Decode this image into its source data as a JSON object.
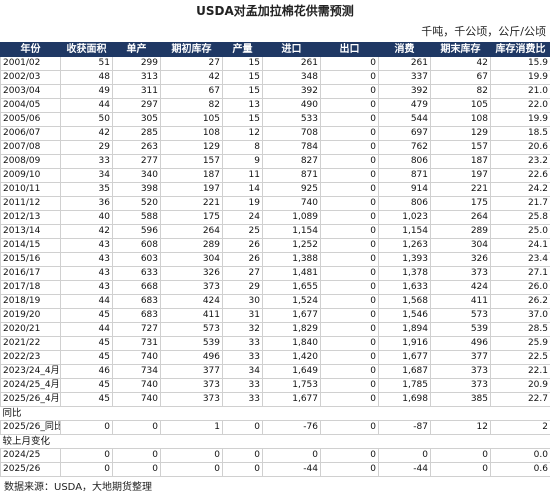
{
  "title": "USDA对孟加拉棉花供需预测",
  "unit": "千吨，千公顷，公斤/公顷",
  "table": {
    "header": [
      "年份",
      "收获面积",
      "单产",
      "期初库存",
      "产量",
      "进口",
      "出口",
      "消费",
      "期末库存",
      "库存消费比"
    ],
    "rows": [
      [
        "2001/02",
        "51",
        "299",
        "27",
        "15",
        "261",
        "0",
        "261",
        "42",
        "15.9"
      ],
      [
        "2002/03",
        "48",
        "313",
        "42",
        "15",
        "348",
        "0",
        "337",
        "67",
        "19.9"
      ],
      [
        "2003/04",
        "49",
        "311",
        "67",
        "15",
        "392",
        "0",
        "392",
        "82",
        "21.0"
      ],
      [
        "2004/05",
        "44",
        "297",
        "82",
        "13",
        "490",
        "0",
        "479",
        "105",
        "22.0"
      ],
      [
        "2005/06",
        "50",
        "305",
        "105",
        "15",
        "533",
        "0",
        "544",
        "108",
        "19.9"
      ],
      [
        "2006/07",
        "42",
        "285",
        "108",
        "12",
        "708",
        "0",
        "697",
        "129",
        "18.5"
      ],
      [
        "2007/08",
        "29",
        "263",
        "129",
        "8",
        "784",
        "0",
        "762",
        "157",
        "20.6"
      ],
      [
        "2008/09",
        "33",
        "277",
        "157",
        "9",
        "827",
        "0",
        "806",
        "187",
        "23.2"
      ],
      [
        "2009/10",
        "34",
        "340",
        "187",
        "11",
        "871",
        "0",
        "871",
        "197",
        "22.6"
      ],
      [
        "2010/11",
        "35",
        "398",
        "197",
        "14",
        "925",
        "0",
        "914",
        "221",
        "24.2"
      ],
      [
        "2011/12",
        "36",
        "520",
        "221",
        "19",
        "740",
        "0",
        "806",
        "175",
        "21.7"
      ],
      [
        "2012/13",
        "40",
        "588",
        "175",
        "24",
        "1,089",
        "0",
        "1,023",
        "264",
        "25.8"
      ],
      [
        "2013/14",
        "42",
        "596",
        "264",
        "25",
        "1,154",
        "0",
        "1,154",
        "289",
        "25.0"
      ],
      [
        "2014/15",
        "43",
        "608",
        "289",
        "26",
        "1,252",
        "0",
        "1,263",
        "304",
        "24.1"
      ],
      [
        "2015/16",
        "43",
        "603",
        "304",
        "26",
        "1,388",
        "0",
        "1,393",
        "326",
        "23.4"
      ],
      [
        "2016/17",
        "43",
        "633",
        "326",
        "27",
        "1,481",
        "0",
        "1,378",
        "373",
        "27.1"
      ],
      [
        "2017/18",
        "43",
        "668",
        "373",
        "29",
        "1,655",
        "0",
        "1,633",
        "424",
        "26.0"
      ],
      [
        "2018/19",
        "44",
        "683",
        "424",
        "30",
        "1,524",
        "0",
        "1,568",
        "411",
        "26.2"
      ],
      [
        "2019/20",
        "45",
        "683",
        "411",
        "31",
        "1,677",
        "0",
        "1,546",
        "573",
        "37.0"
      ],
      [
        "2020/21",
        "44",
        "727",
        "573",
        "32",
        "1,829",
        "0",
        "1,894",
        "539",
        "28.5"
      ],
      [
        "2021/22",
        "45",
        "731",
        "539",
        "33",
        "1,840",
        "0",
        "1,916",
        "496",
        "25.9"
      ],
      [
        "2022/23",
        "45",
        "740",
        "496",
        "33",
        "1,420",
        "0",
        "1,677",
        "377",
        "22.5"
      ],
      [
        "2023/24_4月",
        "46",
        "734",
        "377",
        "34",
        "1,649",
        "0",
        "1,687",
        "373",
        "22.1"
      ],
      [
        "2024/25_4月",
        "45",
        "740",
        "373",
        "33",
        "1,753",
        "0",
        "1,785",
        "373",
        "20.9"
      ],
      [
        "2025/26_4月",
        "45",
        "740",
        "373",
        "33",
        "1,677",
        "0",
        "1,698",
        "385",
        "22.7"
      ]
    ]
  },
  "sections": [
    {
      "label": "同比",
      "rows": [
        [
          "2025/26_同比",
          "0",
          "0",
          "1",
          "0",
          "-76",
          "0",
          "-87",
          "12",
          "2"
        ]
      ]
    },
    {
      "label": "较上月变化",
      "rows": [
        [
          "2024/25",
          "0",
          "0",
          "0",
          "0",
          "0",
          "0",
          "0",
          "0",
          "0.0"
        ],
        [
          "2025/26",
          "0",
          "0",
          "0",
          "0",
          "-44",
          "0",
          "-44",
          "0",
          "0.6"
        ]
      ]
    }
  ],
  "footer": "数据来源：USDA，大地期货整理"
}
